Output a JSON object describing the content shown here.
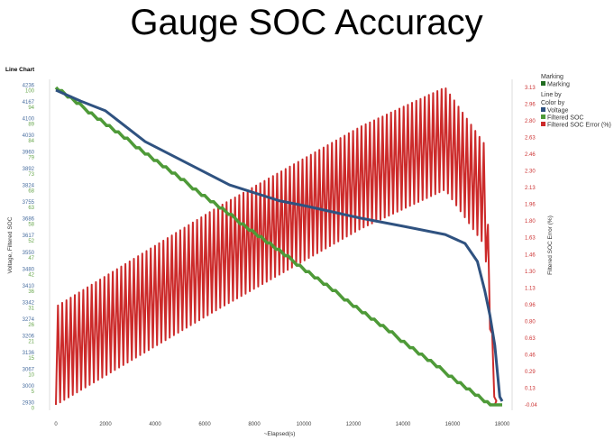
{
  "page_title": "Gauge SOC Accuracy",
  "chart_data": {
    "type": "line",
    "title": "Line Chart",
    "xlabel": "~Elapsed(s)",
    "ylabel_left": "Voltage, Filtered SOC",
    "ylabel_right": "Filtered SOC Error (%)",
    "xlim": [
      0,
      18000
    ],
    "x_ticks": [
      "0",
      "2000",
      "4000",
      "6000",
      "8000",
      "10000",
      "12000",
      "14000",
      "16000",
      "18000"
    ],
    "y_left_voltage_ticks": [
      "4236",
      "4167",
      "4100",
      "4030",
      "3960",
      "3892",
      "3824",
      "3755",
      "3686",
      "3617",
      "3550",
      "3480",
      "3410",
      "3342",
      "3274",
      "3206",
      "3136",
      "3067",
      "3000",
      "2930"
    ],
    "y_left_soc_ticks": [
      "100",
      "94",
      "89",
      "84",
      "79",
      "73",
      "68",
      "63",
      "58",
      "52",
      "47",
      "42",
      "36",
      "31",
      "26",
      "21",
      "15",
      "10",
      "5",
      "0"
    ],
    "y_right_ticks": [
      "3.13",
      "2.96",
      "2.80",
      "2.63",
      "2.46",
      "2.30",
      "2.13",
      "1.96",
      "1.80",
      "1.63",
      "1.46",
      "1.30",
      "1.13",
      "0.96",
      "0.80",
      "0.63",
      "0.46",
      "0.29",
      "0.13",
      "-0.04"
    ],
    "ylim_voltage": [
      2930,
      4236
    ],
    "ylim_soc": [
      0,
      100
    ],
    "ylim_error": [
      -0.04,
      3.13
    ],
    "grid": false,
    "legend_position": "right",
    "series": [
      {
        "name": "Voltage",
        "color": "#2f5280",
        "axis": "left-voltage",
        "x": [
          0,
          1000,
          2000,
          3600,
          5000,
          7000,
          9000,
          10000,
          12300,
          14000,
          15700,
          16500,
          17000,
          17300,
          17500,
          17700,
          17900,
          18000
        ],
        "y": [
          4225,
          4180,
          4140,
          4013,
          3940,
          3835,
          3770,
          3750,
          3698,
          3665,
          3631,
          3594,
          3520,
          3398,
          3300,
          3175,
          2963,
          2945
        ]
      },
      {
        "name": "Filtered SOC",
        "color": "#4e9a38",
        "axis": "left-soc",
        "style": "stepped-markers",
        "x": [
          0,
          17500,
          18000
        ],
        "y": [
          100,
          0,
          0
        ]
      },
      {
        "name": "Filtered SOC Error (%)",
        "color": "#cc2a2a",
        "axis": "right",
        "style": "sawtooth",
        "oscillation_period_s": 170,
        "upper_envelope": {
          "x": [
            0,
            6500,
            12300,
            15700,
            17300,
            17700
          ],
          "y": [
            0.94,
            1.93,
            2.74,
            3.13,
            2.56,
            0.0
          ]
        },
        "lower_envelope": {
          "x": [
            0,
            6500,
            12300,
            15700,
            17300,
            17700
          ],
          "y": [
            -0.04,
            0.91,
            1.72,
            2.11,
            1.55,
            -0.04
          ]
        }
      }
    ]
  },
  "legend": {
    "marking_title": "Marking",
    "marking_item": "Marking",
    "marking_color": "#1f6b1f",
    "line_by": "Line by",
    "color_by": "Color by",
    "items": [
      {
        "label": "Voltage",
        "color": "#2f5280"
      },
      {
        "label": "Filtered SOC",
        "color": "#4e9a38"
      },
      {
        "label": "Filtered SOC Error (%)",
        "color": "#cc2a2a"
      }
    ]
  }
}
